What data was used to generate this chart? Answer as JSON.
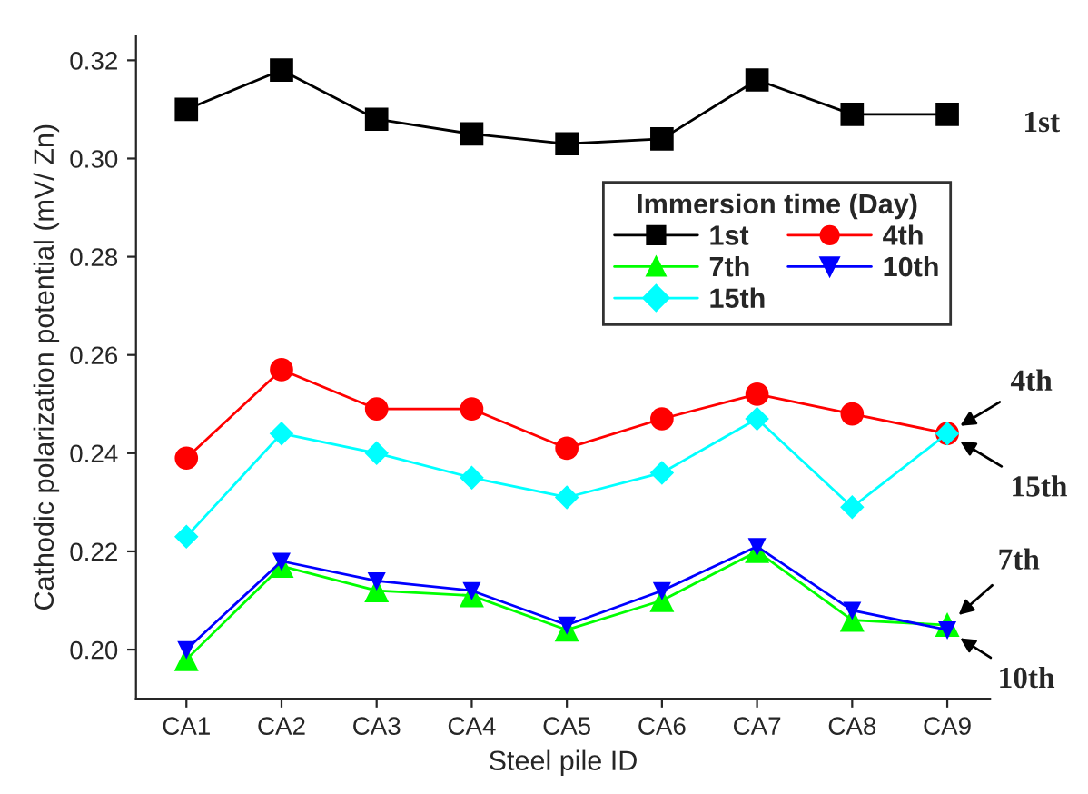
{
  "chart_data": {
    "type": "line",
    "xlabel": "Steel pile ID",
    "ylabel": "Cathodic polarization potential (mV/ Zn)",
    "legend_title": "Immersion time (Day)",
    "categories": [
      "CA1",
      "CA2",
      "CA3",
      "CA4",
      "CA5",
      "CA6",
      "CA7",
      "CA8",
      "CA9"
    ],
    "series": [
      {
        "name": "1st",
        "color": "#000000",
        "marker": "square",
        "values": [
          0.31,
          0.318,
          0.308,
          0.305,
          0.303,
          0.304,
          0.316,
          0.309,
          0.309
        ]
      },
      {
        "name": "4th",
        "color": "#ff0000",
        "marker": "circle",
        "values": [
          0.239,
          0.257,
          0.249,
          0.249,
          0.241,
          0.247,
          0.252,
          0.248,
          0.244
        ]
      },
      {
        "name": "7th",
        "color": "#00ff00",
        "marker": "triangle",
        "values": [
          0.198,
          0.217,
          0.212,
          0.211,
          0.204,
          0.21,
          0.22,
          0.206,
          0.205
        ]
      },
      {
        "name": "10th",
        "color": "#0000ff",
        "marker": "triangle_down",
        "values": [
          0.2,
          0.218,
          0.214,
          0.212,
          0.205,
          0.212,
          0.221,
          0.208,
          0.204
        ]
      },
      {
        "name": "15th",
        "color": "#00ffff",
        "marker": "diamond",
        "values": [
          0.223,
          0.244,
          0.24,
          0.235,
          0.231,
          0.236,
          0.247,
          0.229,
          0.244
        ]
      }
    ],
    "ylim": [
      0.19,
      0.325
    ],
    "yticks": [
      {
        "value": 0.2,
        "label": "0.20"
      },
      {
        "value": 0.22,
        "label": "0.22"
      },
      {
        "value": 0.24,
        "label": "0.24"
      },
      {
        "value": 0.26,
        "label": "0.26"
      },
      {
        "value": 0.28,
        "label": "0.28"
      },
      {
        "value": 0.3,
        "label": "0.30"
      },
      {
        "value": 0.32,
        "label": "0.32"
      }
    ],
    "grid": false,
    "legend": "top right",
    "line_style": "solid",
    "annotations": [
      {
        "text": "1st",
        "x": "CA9",
        "y": 0.309
      },
      {
        "text": "4th",
        "x": "CA9",
        "y": 0.244
      },
      {
        "text": "15th",
        "x": "CA9",
        "y": 0.244
      },
      {
        "text": "7th",
        "x": "CA9",
        "y": 0.205
      },
      {
        "text": "10th",
        "x": "CA9",
        "y": 0.204
      }
    ]
  }
}
